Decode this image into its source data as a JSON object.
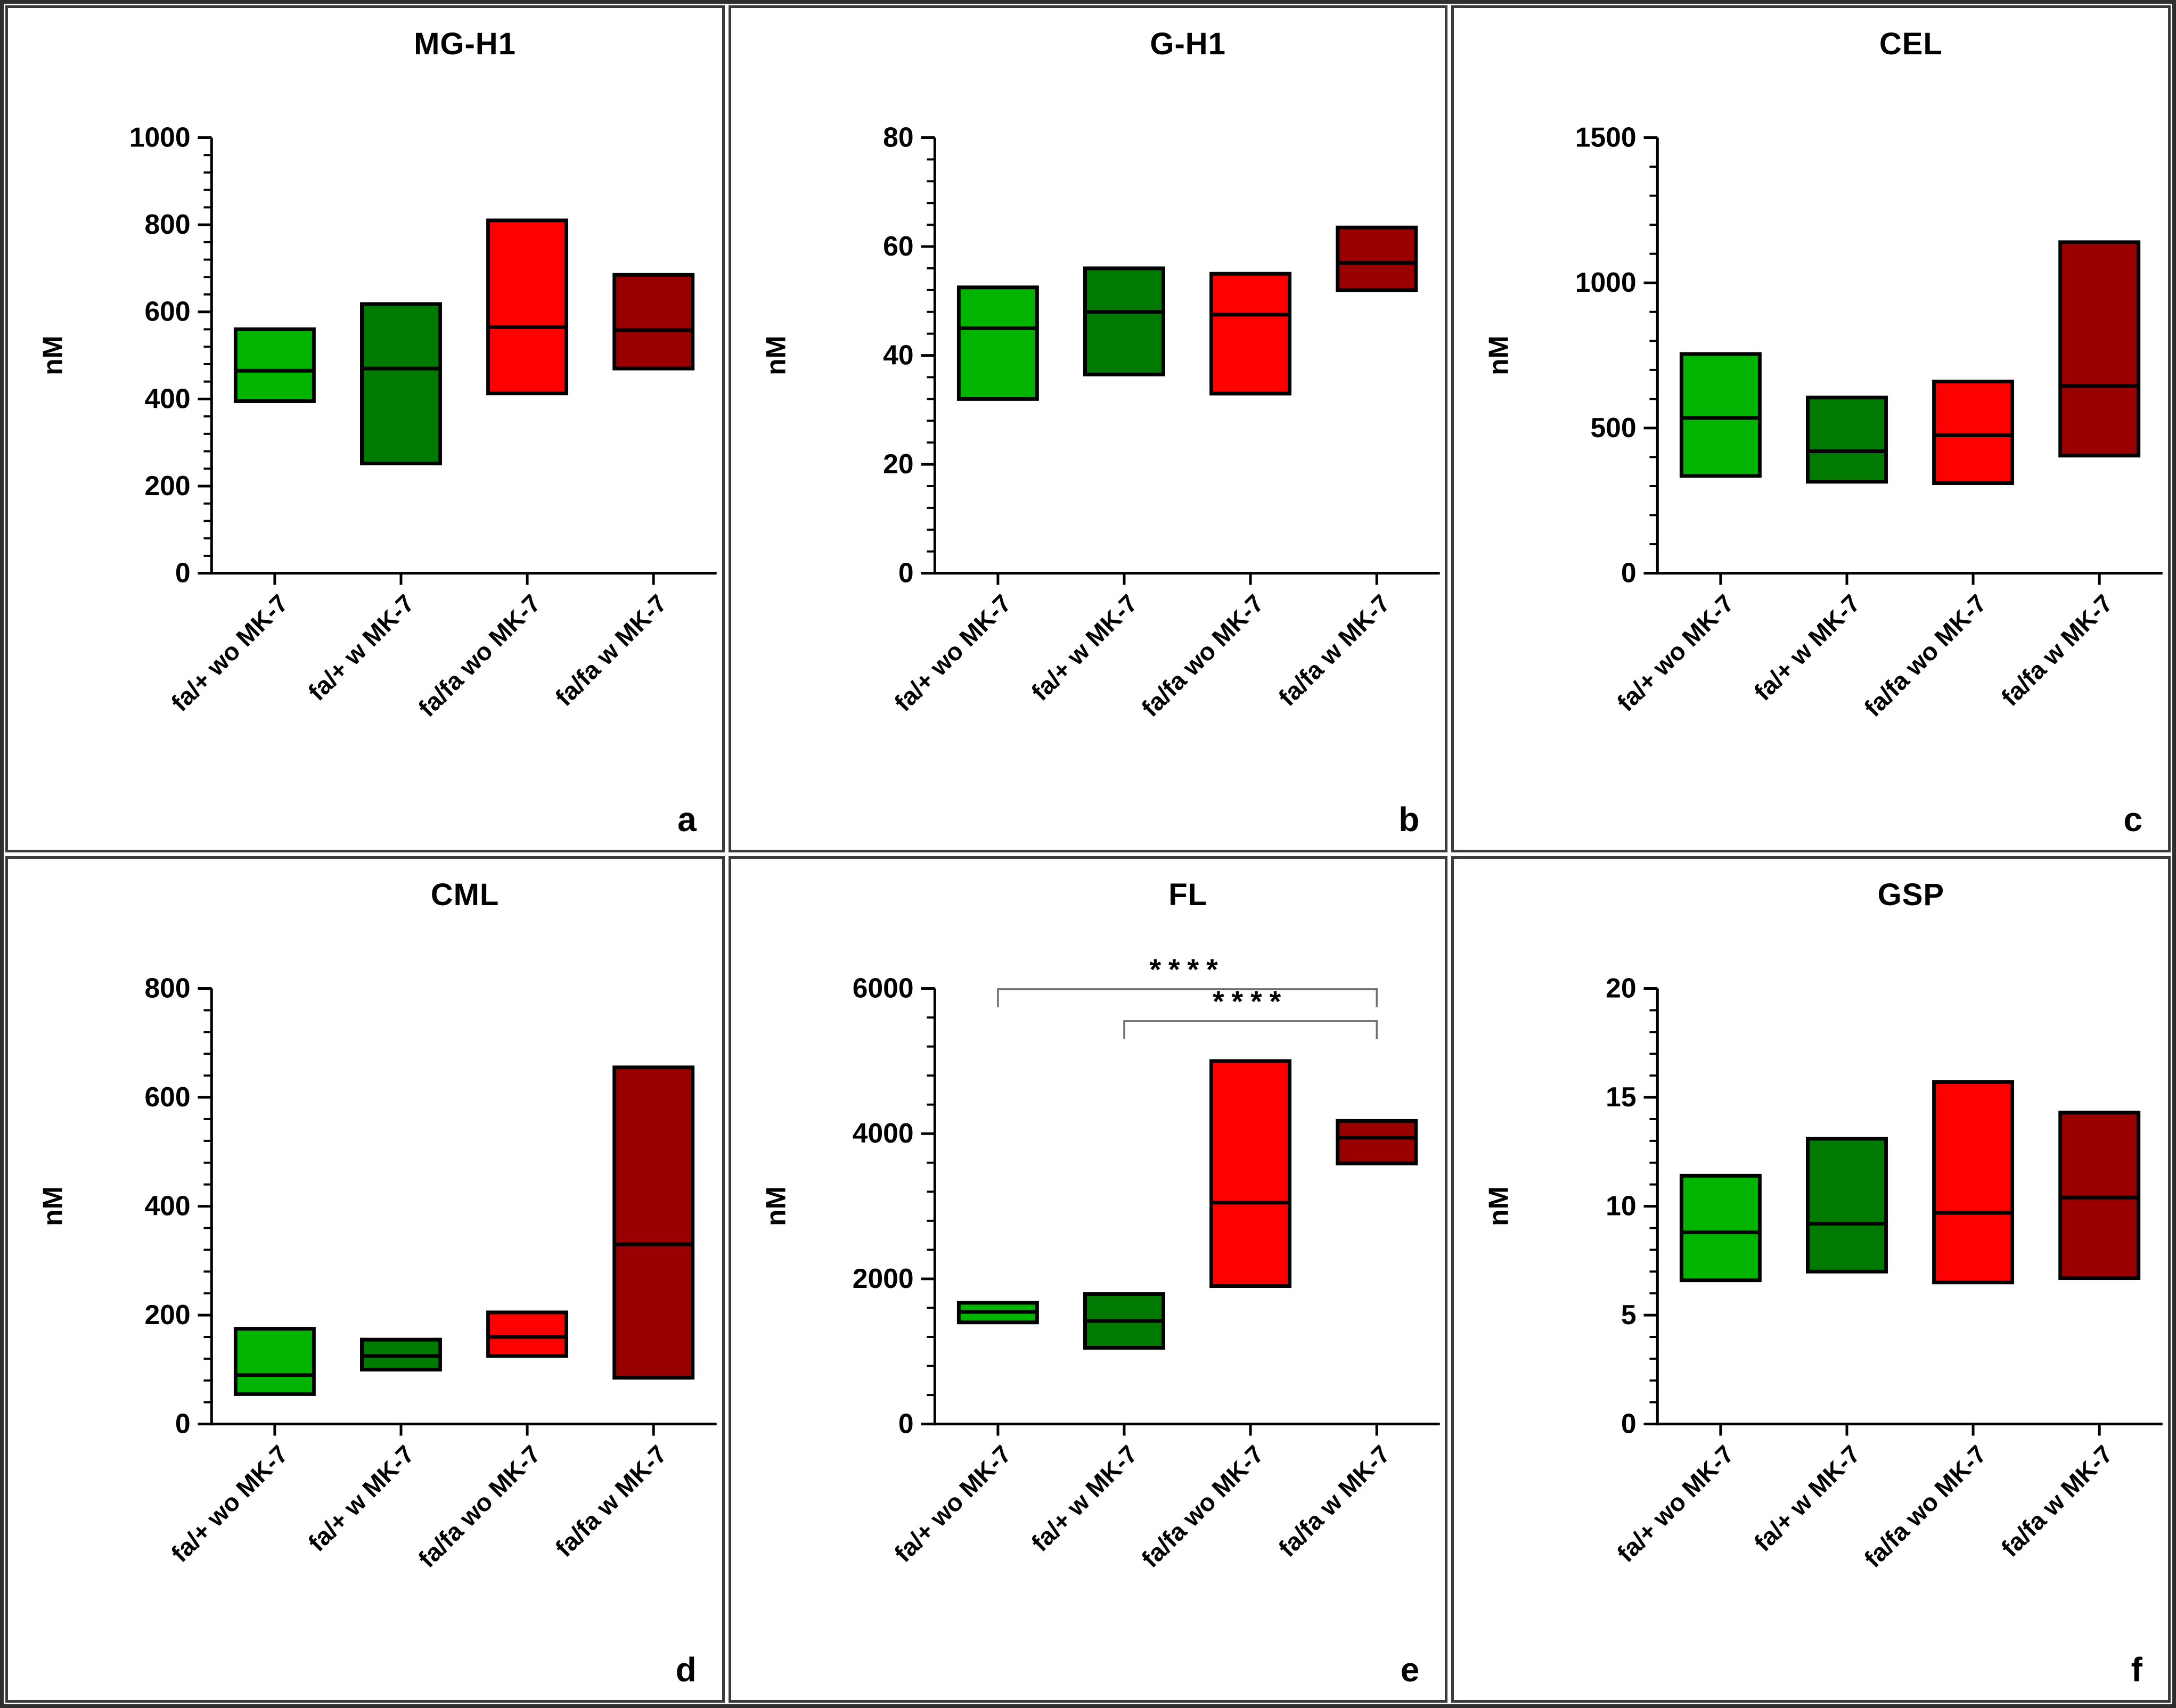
{
  "figure": {
    "description": "Six-panel floating bar (min-median-max) figure of AGE concentrations",
    "ylabel": "nM"
  },
  "colors": {
    "light_green": "#00B400",
    "dark_green": "#007A00",
    "red": "#FF0000",
    "dark_red": "#9B0000",
    "axis": "#000000",
    "bracket": "#6F6F6F",
    "bar_border": "#000000"
  },
  "bar_color_keys": [
    "light_green",
    "dark_green",
    "red",
    "dark_red"
  ],
  "categories": [
    "fa/+ wo MK-7",
    "fa/+ w MK-7",
    "fa/fa wo MK-7",
    "fa/fa w MK-7"
  ],
  "chart_data": [
    {
      "panel": "a",
      "title": "MG-H1",
      "type": "floating-bar-min-median-max",
      "ylabel": "nM",
      "ylim": [
        0,
        1000
      ],
      "ytick_major": 200,
      "ytick_minor": 40,
      "grid": false,
      "categories": [
        "fa/+ wo MK-7",
        "fa/+ w MK-7",
        "fa/fa wo MK-7",
        "fa/fa w MK-7"
      ],
      "series": [
        {
          "category": "fa/+ wo MK-7",
          "color": "light_green",
          "min": 395,
          "median": 465,
          "max": 560
        },
        {
          "category": "fa/+ w MK-7",
          "color": "dark_green",
          "min": 252,
          "median": 470,
          "max": 618
        },
        {
          "category": "fa/fa wo MK-7",
          "color": "red",
          "min": 413,
          "median": 565,
          "max": 810
        },
        {
          "category": "fa/fa w MK-7",
          "color": "dark_red",
          "min": 470,
          "median": 558,
          "max": 685
        }
      ]
    },
    {
      "panel": "b",
      "title": "G-H1",
      "type": "floating-bar-min-median-max",
      "ylabel": "nM",
      "ylim": [
        0,
        80
      ],
      "ytick_major": 20,
      "ytick_minor": 4,
      "grid": false,
      "categories": [
        "fa/+ wo MK-7",
        "fa/+ w MK-7",
        "fa/fa wo MK-7",
        "fa/fa w MK-7"
      ],
      "series": [
        {
          "category": "fa/+ wo MK-7",
          "color": "light_green",
          "min": 32,
          "median": 45,
          "max": 52.5
        },
        {
          "category": "fa/+ w MK-7",
          "color": "dark_green",
          "min": 36.5,
          "median": 48,
          "max": 56
        },
        {
          "category": "fa/fa wo MK-7",
          "color": "red",
          "min": 33,
          "median": 47.5,
          "max": 55
        },
        {
          "category": "fa/fa w MK-7",
          "color": "dark_red",
          "min": 52,
          "median": 57,
          "max": 63.5
        }
      ]
    },
    {
      "panel": "c",
      "title": "CEL",
      "type": "floating-bar-min-median-max",
      "ylabel": "nM",
      "ylim": [
        0,
        1500
      ],
      "ytick_major": 500,
      "ytick_minor": 100,
      "grid": false,
      "categories": [
        "fa/+ wo MK-7",
        "fa/+ w MK-7",
        "fa/fa wo MK-7",
        "fa/fa w MK-7"
      ],
      "series": [
        {
          "category": "fa/+ wo MK-7",
          "color": "light_green",
          "min": 335,
          "median": 535,
          "max": 755
        },
        {
          "category": "fa/+ w MK-7",
          "color": "dark_green",
          "min": 315,
          "median": 420,
          "max": 605
        },
        {
          "category": "fa/fa wo MK-7",
          "color": "red",
          "min": 310,
          "median": 475,
          "max": 660
        },
        {
          "category": "fa/fa w MK-7",
          "color": "dark_red",
          "min": 405,
          "median": 645,
          "max": 1140
        }
      ]
    },
    {
      "panel": "d",
      "title": "CML",
      "type": "floating-bar-min-median-max",
      "ylabel": "nM",
      "ylim": [
        0,
        800
      ],
      "ytick_major": 200,
      "ytick_minor": 40,
      "grid": false,
      "categories": [
        "fa/+ wo MK-7",
        "fa/+ w MK-7",
        "fa/fa wo MK-7",
        "fa/fa w MK-7"
      ],
      "series": [
        {
          "category": "fa/+ wo MK-7",
          "color": "light_green",
          "min": 55,
          "median": 90,
          "max": 175
        },
        {
          "category": "fa/+ w MK-7",
          "color": "dark_green",
          "min": 100,
          "median": 125,
          "max": 155
        },
        {
          "category": "fa/fa wo MK-7",
          "color": "red",
          "min": 125,
          "median": 160,
          "max": 205
        },
        {
          "category": "fa/fa w MK-7",
          "color": "dark_red",
          "min": 85,
          "median": 330,
          "max": 655
        }
      ]
    },
    {
      "panel": "e",
      "title": "FL",
      "type": "floating-bar-min-median-max",
      "ylabel": "nM",
      "ylim": [
        0,
        6000
      ],
      "ytick_major": 2000,
      "ytick_minor": 400,
      "grid": false,
      "categories": [
        "fa/+ wo MK-7",
        "fa/+ w MK-7",
        "fa/fa wo MK-7",
        "fa/fa w MK-7"
      ],
      "series": [
        {
          "category": "fa/+ wo MK-7",
          "color": "light_green",
          "min": 1400,
          "median": 1545,
          "max": 1670
        },
        {
          "category": "fa/+ w MK-7",
          "color": "dark_green",
          "min": 1050,
          "median": 1420,
          "max": 1790
        },
        {
          "category": "fa/fa wo MK-7",
          "color": "red",
          "min": 1900,
          "median": 3050,
          "max": 5000
        },
        {
          "category": "fa/fa w MK-7",
          "color": "dark_red",
          "min": 3590,
          "median": 3945,
          "max": 4175
        }
      ],
      "significance": [
        {
          "from": 0,
          "to": 3,
          "label": "****",
          "y": 5990
        },
        {
          "from": 1,
          "to": 3,
          "label": "****",
          "y": 5550
        }
      ]
    },
    {
      "panel": "f",
      "title": "GSP",
      "type": "floating-bar-min-median-max",
      "ylabel": "nM",
      "ylim": [
        0,
        20
      ],
      "ytick_major": 5,
      "ytick_minor": 1,
      "grid": false,
      "categories": [
        "fa/+ wo MK-7",
        "fa/+ w MK-7",
        "fa/fa wo MK-7",
        "fa/fa w MK-7"
      ],
      "series": [
        {
          "category": "fa/+ wo MK-7",
          "color": "light_green",
          "min": 6.6,
          "median": 8.8,
          "max": 11.4
        },
        {
          "category": "fa/+ w MK-7",
          "color": "dark_green",
          "min": 7.0,
          "median": 9.2,
          "max": 13.1
        },
        {
          "category": "fa/fa wo MK-7",
          "color": "red",
          "min": 6.5,
          "median": 9.7,
          "max": 15.7
        },
        {
          "category": "fa/fa w MK-7",
          "color": "dark_red",
          "min": 6.7,
          "median": 10.4,
          "max": 14.3
        }
      ]
    }
  ]
}
